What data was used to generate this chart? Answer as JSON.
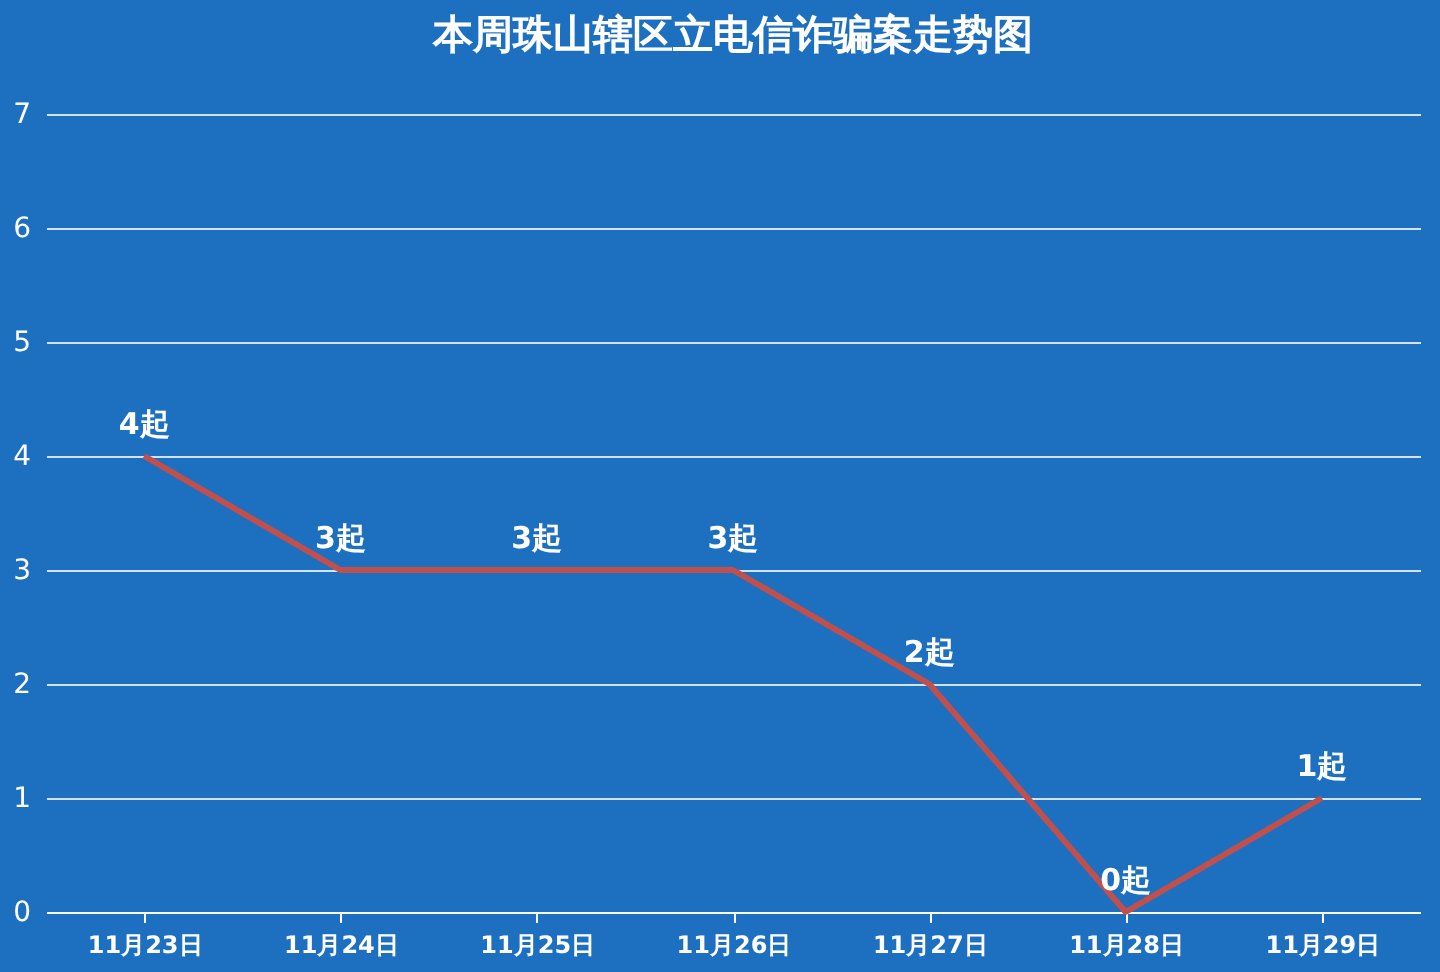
{
  "chart_data": {
    "type": "line",
    "title": "本周珠山辖区立电信诈骗案走势图",
    "categories": [
      "11月23日",
      "11月24日",
      "11月25日",
      "11月26日",
      "11月27日",
      "11月28日",
      "11月29日"
    ],
    "series": [
      {
        "color": "#c0504d",
        "values": [
          4,
          3,
          3,
          3,
          2,
          0,
          1
        ],
        "value_labels": [
          "4起",
          "3起",
          "3起",
          "3起",
          "2起",
          "0起",
          "1起"
        ]
      }
    ],
    "ylim": [
      0,
      7
    ],
    "yticks": [
      0,
      1,
      2,
      3,
      4,
      5,
      6,
      7
    ],
    "grid": "y",
    "line_style": "solid"
  }
}
